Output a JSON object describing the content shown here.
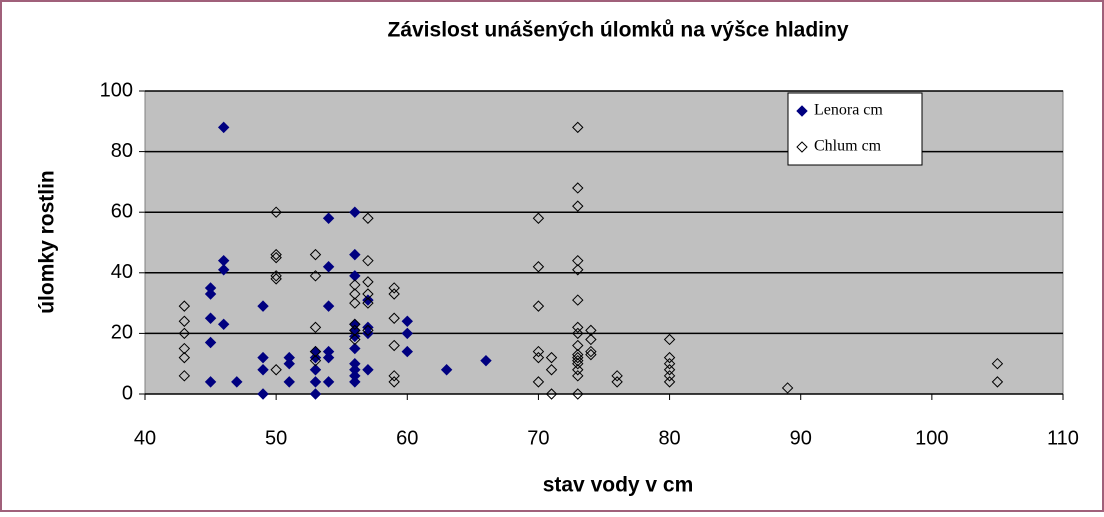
{
  "chart_data": {
    "type": "scatter",
    "title": "Závislost unášených úlomků na výšce hladiny",
    "xlabel": "stav vody v cm",
    "ylabel": "úlomky rostlin",
    "xlim": [
      40,
      110
    ],
    "xticks": [
      40,
      50,
      60,
      70,
      80,
      90,
      100,
      110
    ],
    "ylim": [
      0,
      100
    ],
    "yticks": [
      0,
      20,
      40,
      60,
      80,
      100
    ],
    "grid": true,
    "legend": "upper right",
    "series": [
      {
        "name": "Lenora cm",
        "color": "#000080",
        "filled": true,
        "x": [
          45,
          45,
          45,
          45,
          45,
          46,
          46,
          46,
          46,
          47,
          49,
          49,
          49,
          49,
          51,
          51,
          51,
          53,
          53,
          53,
          53,
          53,
          54,
          54,
          54,
          54,
          54,
          54,
          56,
          56,
          56,
          56,
          56,
          56,
          56,
          56,
          56,
          56,
          56,
          57,
          57,
          57,
          57,
          60,
          60,
          60,
          63,
          66
        ],
        "values": [
          35,
          33,
          25,
          17,
          4,
          88,
          44,
          41,
          23,
          4,
          29,
          12,
          8,
          0,
          12,
          10,
          4,
          14,
          12,
          8,
          4,
          0,
          58,
          42,
          29,
          14,
          12,
          4,
          60,
          46,
          39,
          23,
          21,
          19,
          15,
          10,
          8,
          6,
          4,
          31,
          22,
          20,
          8,
          24,
          20,
          14,
          8,
          11
        ]
      },
      {
        "name": "Chlum cm",
        "color": "#000000",
        "filled": false,
        "x": [
          43,
          43,
          43,
          43,
          43,
          43,
          50,
          50,
          50,
          50,
          50,
          50,
          53,
          53,
          53,
          53,
          53,
          56,
          56,
          56,
          56,
          56,
          56,
          57,
          57,
          57,
          57,
          57,
          57,
          59,
          59,
          59,
          59,
          59,
          59,
          70,
          70,
          70,
          70,
          70,
          70,
          71,
          71,
          71,
          73,
          73,
          73,
          73,
          73,
          73,
          73,
          73,
          73,
          73,
          73,
          73,
          73,
          73,
          73,
          73,
          74,
          74,
          74,
          74,
          76,
          76,
          80,
          80,
          80,
          80,
          80,
          80,
          89,
          105,
          105
        ],
        "values": [
          29,
          24,
          20,
          15,
          12,
          6,
          60,
          46,
          45,
          39,
          38,
          8,
          46,
          39,
          22,
          14,
          11,
          36,
          33,
          30,
          23,
          21,
          18,
          58,
          44,
          37,
          33,
          30,
          21,
          35,
          33,
          25,
          16,
          6,
          4,
          58,
          42,
          29,
          14,
          12,
          4,
          12,
          8,
          0,
          88,
          68,
          62,
          44,
          41,
          31,
          22,
          20,
          16,
          13,
          12,
          11,
          10,
          8,
          6,
          0,
          21,
          18,
          14,
          13,
          6,
          4,
          18,
          12,
          10,
          8,
          6,
          4,
          2,
          10,
          4
        ]
      }
    ]
  }
}
